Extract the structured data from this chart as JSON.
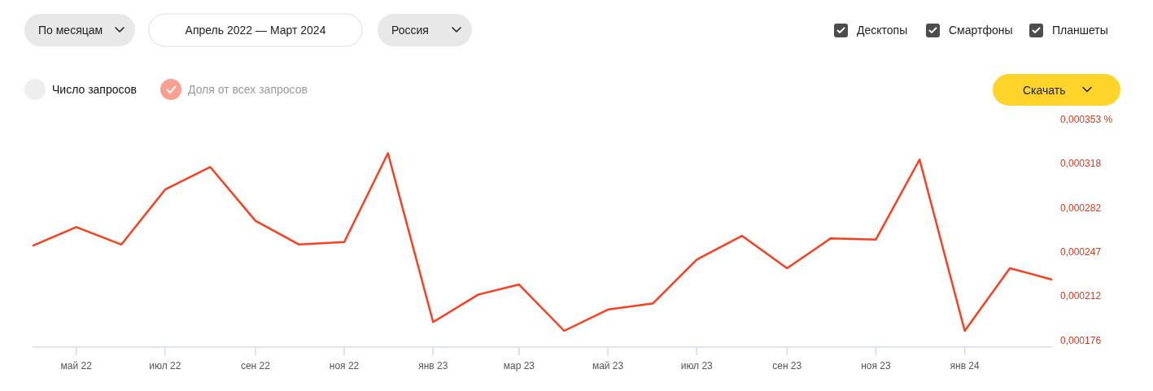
{
  "chart_data": {
    "type": "line",
    "x": [
      "2022-04",
      "2022-05",
      "2022-06",
      "2022-07",
      "2022-08",
      "2022-09",
      "2022-10",
      "2022-11",
      "2022-12",
      "2023-01",
      "2023-02",
      "2023-03",
      "2023-04",
      "2023-05",
      "2023-06",
      "2023-07",
      "2023-08",
      "2023-09",
      "2023-10",
      "2023-11",
      "2023-12",
      "2024-01",
      "2024-02",
      "2024-03"
    ],
    "series": [
      {
        "color": "#ff3d1f",
        "values": [
          0.000252,
          0.000267,
          0.000253,
          0.000297,
          0.000315,
          0.000272,
          0.000253,
          0.000255,
          0.000326,
          0.000191,
          0.000213,
          0.000221,
          0.000184,
          0.000201,
          0.000206,
          0.000241,
          0.00026,
          0.000234,
          0.000258,
          0.000257,
          0.000321,
          0.000184,
          0.000234,
          0.000225
        ]
      }
    ],
    "xlim": [
      "2022-04",
      "2024-03"
    ],
    "xticks": [
      {
        "value": "2022-05",
        "label": "май 22"
      },
      {
        "value": "2022-07",
        "label": "июл 22"
      },
      {
        "value": "2022-09",
        "label": "сен 22"
      },
      {
        "value": "2022-11",
        "label": "ноя 22"
      },
      {
        "value": "2023-01",
        "label": "янв 23"
      },
      {
        "value": "2023-03",
        "label": "мар 23"
      },
      {
        "value": "2023-05",
        "label": "май 23"
      },
      {
        "value": "2023-07",
        "label": "июл 23"
      },
      {
        "value": "2023-09",
        "label": "сен 23"
      },
      {
        "value": "2023-11",
        "label": "ноя 23"
      },
      {
        "value": "2024-01",
        "label": "янв 24"
      }
    ],
    "ylim": [
      0.000171,
      0.000353
    ],
    "yticks": [
      {
        "value": 0.000176,
        "label": "0,000176"
      },
      {
        "value": 0.000212,
        "label": "0,000212"
      },
      {
        "value": 0.000247,
        "label": "0,000247"
      },
      {
        "value": 0.000282,
        "label": "0,000282"
      },
      {
        "value": 0.000318,
        "label": "0,000318"
      },
      {
        "value": 0.000353,
        "label": "0,000353 %"
      }
    ],
    "grid": false,
    "marker": "none",
    "line_style": "solid",
    "annotations": [
      "По месяцам",
      "Апрель 2022 — Март 2024",
      "Россия",
      "Десктопы",
      "Смартфоны",
      "Планшеты",
      "Число запросов",
      "Доля от всех запросов",
      "Скачать"
    ]
  }
}
